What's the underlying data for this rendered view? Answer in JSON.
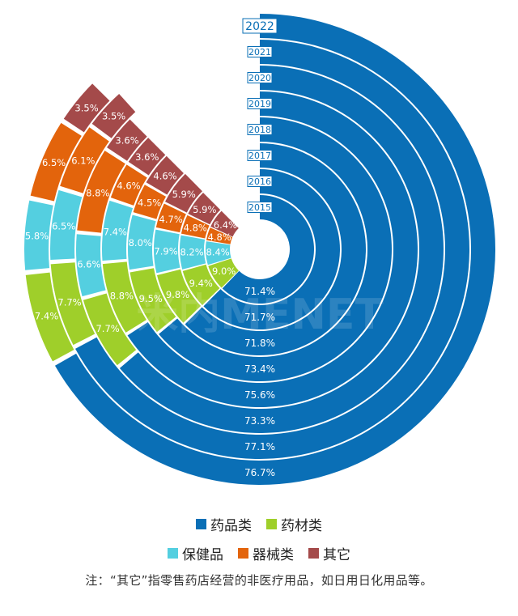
{
  "chart_data": {
    "type": "radial-stacked-bar",
    "note": "注：“其它”指零售药店经营的非医疗用品，如日用日化用品等。",
    "watermark": "米内MENET",
    "years": [
      "2022",
      "2021",
      "2020",
      "2019",
      "2018",
      "2017",
      "2016",
      "2015"
    ],
    "series": [
      {
        "name": "药品类",
        "color": "#0a6fb6",
        "values": [
          76.7,
          77.1,
          73.3,
          75.6,
          73.4,
          71.8,
          71.7,
          71.4
        ],
        "labels": [
          "76.7%",
          "77.1%",
          "73.3%",
          "75.6%",
          "73.4%",
          "71.8%",
          "71.7%",
          "71.4%"
        ]
      },
      {
        "name": "药材类",
        "color": "#9fcf2a",
        "values": [
          7.4,
          7.7,
          7.7,
          8.8,
          9.5,
          9.8,
          9.4,
          9.0
        ],
        "labels": [
          "7.4%",
          "7.7%",
          "7.7%",
          "8.8%",
          "9.5%",
          "9.8%",
          "9.4%",
          "9.0%"
        ]
      },
      {
        "name": "保健品",
        "color": "#54cfe0",
        "values": [
          5.8,
          6.5,
          6.6,
          7.4,
          8.0,
          7.9,
          8.2,
          8.4
        ],
        "labels": [
          "5.8%",
          "6.5%",
          "6.6%",
          "7.4%",
          "8.0%",
          "7.9%",
          "8.2%",
          "8.4%"
        ]
      },
      {
        "name": "器械类",
        "color": "#e3640c",
        "values": [
          6.5,
          6.1,
          8.8,
          4.6,
          4.5,
          4.7,
          4.8,
          4.8
        ],
        "labels": [
          "6.5%",
          "6.1%",
          "8.8%",
          "4.6%",
          "4.5%",
          "4.7%",
          "4.8%",
          "4.8%"
        ]
      },
      {
        "name": "其它",
        "color": "#a44a4a",
        "values": [
          3.5,
          3.5,
          3.6,
          3.6,
          4.6,
          5.9,
          5.9,
          6.4
        ],
        "labels": [
          "3.5%",
          "3.5%",
          "3.6%",
          "3.6%",
          "4.6%",
          "5.9%",
          "5.9%",
          "6.4%"
        ]
      }
    ],
    "legend_rows": [
      [
        "药品类",
        "药材类"
      ],
      [
        "保健品",
        "器械类",
        "其它"
      ]
    ]
  }
}
